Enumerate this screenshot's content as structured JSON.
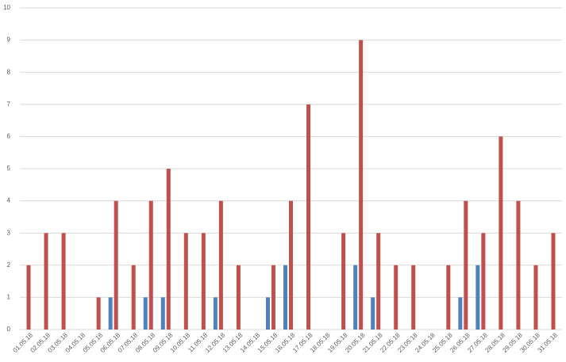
{
  "chart_data": {
    "type": "bar",
    "categories": [
      "01.05.18",
      "02.05.18",
      "03.05.18",
      "04.05.18",
      "05.05.18",
      "06.05.18",
      "07.05.18",
      "08.05.18",
      "09.05.18",
      "10.05.18",
      "11.05.18",
      "12.05.18",
      "13.05.18",
      "14.05.18",
      "15.05.18",
      "16.05.18",
      "17.05.18",
      "18.05.18",
      "19.05.18",
      "20.05.18",
      "21.05.18",
      "22.05.18",
      "23.05.18",
      "24.05.18",
      "25.05.18",
      "26.05.18",
      "27.05.18",
      "28.05.18",
      "29.05.18",
      "30.05.18",
      "31.05.18"
    ],
    "series": [
      {
        "color": "#4f81bd",
        "values": [
          0,
          0,
          0,
          0,
          0,
          1,
          0,
          1,
          1,
          0,
          0,
          1,
          0,
          0,
          1,
          2,
          0,
          0,
          0,
          2,
          1,
          0,
          0,
          0,
          0,
          1,
          2,
          0,
          0,
          0,
          0
        ]
      },
      {
        "color": "#c0504d",
        "values": [
          2,
          3,
          3,
          0,
          1,
          4,
          2,
          4,
          5,
          3,
          3,
          4,
          2,
          0,
          2,
          4,
          7,
          0,
          3,
          9,
          3,
          2,
          2,
          0,
          2,
          4,
          3,
          6,
          4,
          2,
          3
        ]
      }
    ],
    "ylim": [
      0,
      10
    ],
    "yticks": [
      0,
      1,
      2,
      3,
      4,
      5,
      6,
      7,
      8,
      9,
      10
    ],
    "grid": true
  }
}
